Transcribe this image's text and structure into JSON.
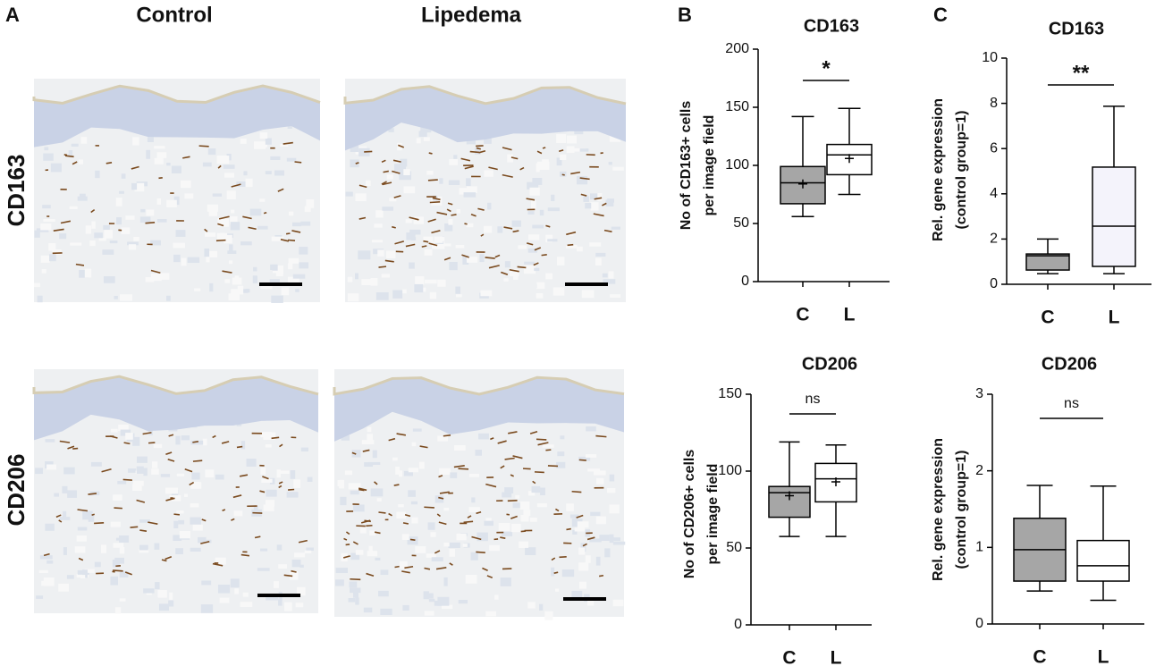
{
  "panel_labels": [
    "A",
    "B",
    "C"
  ],
  "panel_a": {
    "columns": [
      "Control",
      "Lipedema"
    ],
    "rows": [
      "CD163",
      "CD206"
    ]
  },
  "chart_data": [
    {
      "type": "box",
      "title": "CD163",
      "ylabel": [
        "No of CD163+ cells",
        "per image field"
      ],
      "categories": [
        "C",
        "L"
      ],
      "boxes": [
        {
          "color": "#a6a6a6",
          "min": 56,
          "q1": 67,
          "median": 85,
          "q3": 99,
          "max": 142,
          "mean": 84
        },
        {
          "color": "#ffffff",
          "min": 75,
          "q1": 92,
          "median": 109,
          "q3": 118,
          "max": 149,
          "mean": 106
        }
      ],
      "ylim": [
        0,
        200
      ],
      "yticks": [
        0,
        50,
        100,
        150,
        200
      ],
      "annotation": "*"
    },
    {
      "type": "box",
      "title": "CD163",
      "ylabel": [
        "Rel. gene expression",
        "(control group=1)"
      ],
      "categories": [
        "C",
        "L"
      ],
      "boxes": [
        {
          "color": "#a6a6a6",
          "min": 0.47,
          "q1": 0.63,
          "median": 1.26,
          "q3": 1.34,
          "max": 2.0
        },
        {
          "color": "#f4f3fb",
          "min": 0.47,
          "q1": 0.79,
          "median": 2.57,
          "q3": 5.18,
          "max": 7.87
        }
      ],
      "ylim": [
        0,
        10
      ],
      "yticks": [
        0,
        2,
        4,
        6,
        8,
        10
      ],
      "annotation": "**"
    },
    {
      "type": "box",
      "title": "CD206",
      "ylabel": [
        "No of CD206+ cells",
        "per image field"
      ],
      "categories": [
        "C",
        "L"
      ],
      "boxes": [
        {
          "color": "#a6a6a6",
          "min": 57.5,
          "q1": 70,
          "median": 86,
          "q3": 90,
          "max": 119,
          "mean": 84
        },
        {
          "color": "#ffffff",
          "min": 57.5,
          "q1": 80,
          "median": 95,
          "q3": 105,
          "max": 117,
          "mean": 93
        }
      ],
      "ylim": [
        0,
        150
      ],
      "yticks": [
        0,
        50,
        100,
        150
      ],
      "annotation": "ns"
    },
    {
      "type": "box",
      "title": "CD206",
      "ylabel": [
        "Rel. gene expression",
        "(control group=1)"
      ],
      "categories": [
        "C",
        "L"
      ],
      "boxes": [
        {
          "color": "#a6a6a6",
          "min": 0.43,
          "q1": 0.56,
          "median": 0.97,
          "q3": 1.38,
          "max": 1.81
        },
        {
          "color": "#ffffff",
          "min": 0.31,
          "q1": 0.56,
          "median": 0.76,
          "q3": 1.09,
          "max": 1.8
        }
      ],
      "ylim": [
        0,
        3
      ],
      "yticks": [
        0,
        1,
        2,
        3
      ],
      "annotation": "ns"
    }
  ]
}
